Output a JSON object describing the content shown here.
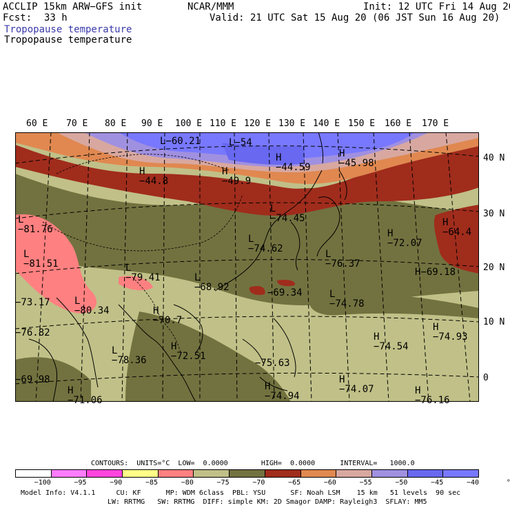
{
  "header": {
    "model_line": "ACCLIP 15km ARW−GFS init",
    "org": "NCAR/MMM",
    "init": "Init: 12 UTC Fri 14 Aug 20",
    "fcst_label": "Fcst:",
    "fcst_value": "33 h",
    "valid": "Valid: 21 UTC Sat 15 Aug 20 (06 JST Sun 16 Aug 20)",
    "field_title_colored": "Tropopause temperature",
    "field_title": "Tropopause temperature",
    "title_color": "#3a3aaa"
  },
  "map": {
    "lon_labels": [
      "60 E",
      "70 E",
      "80 E",
      "90 E",
      "100 E",
      "110 E",
      "120 E",
      "130 E",
      "140 E",
      "150 E",
      "160 E",
      "170 E"
    ],
    "lat_labels": [
      "40 N",
      "30 N",
      "20 N",
      "10 N",
      "0"
    ],
    "highs_lows": [
      {
        "mark": "L",
        "value": "−60.21"
      },
      {
        "mark": "L",
        "value": "−54"
      },
      {
        "mark": "H",
        "value": "−44.8"
      },
      {
        "mark": "H",
        "value": "−49.9"
      },
      {
        "mark": "H",
        "value": "−44.59"
      },
      {
        "mark": "H",
        "value": "−45.98"
      },
      {
        "mark": "L",
        "value": "−81.76"
      },
      {
        "mark": "L",
        "value": "−81.51"
      },
      {
        "mark": "L",
        "value": "−79.41"
      },
      {
        "mark": "L",
        "value": "−74.45"
      },
      {
        "mark": "L",
        "value": "−74.62"
      },
      {
        "mark": "H",
        "value": "−72.07"
      },
      {
        "mark": "H",
        "value": "−64.4"
      },
      {
        "mark": "L",
        "value": "−76.37"
      },
      {
        "mark": "L",
        "value": "−68.92"
      },
      {
        "mark": "L",
        "value": "−69.34"
      },
      {
        "mark": "L",
        "value": "−74.78"
      },
      {
        "mark": "H",
        "value": "−69.18"
      },
      {
        "mark": "L",
        "value": "−73.17"
      },
      {
        "mark": "L",
        "value": "−80.34"
      },
      {
        "mark": "H",
        "value": "−70.7"
      },
      {
        "mark": "H",
        "value": "−74.93"
      },
      {
        "mark": "H",
        "value": "−76.82"
      },
      {
        "mark": "L",
        "value": "−78.36"
      },
      {
        "mark": "H",
        "value": "−72.51"
      },
      {
        "mark": "H",
        "value": "−74.54"
      },
      {
        "mark": "H",
        "value": "−75.63"
      },
      {
        "mark": "H",
        "value": "−69.98"
      },
      {
        "mark": "H",
        "value": "−71.06"
      },
      {
        "mark": "H",
        "value": "−74.94"
      },
      {
        "mark": "H",
        "value": "−74.07"
      },
      {
        "mark": "H",
        "value": "−76.16"
      }
    ]
  },
  "legend": {
    "contours_line": "CONTOURS:  UNITS=°C  LOW=  0.0000        HIGH=  0.0000      INTERVAL=   1000.0",
    "ticks": [
      "−100",
      "−95",
      "−90",
      "−85",
      "−80",
      "−75",
      "−70",
      "−65",
      "−60",
      "−55",
      "−50",
      "−45",
      "−40",
      "°C"
    ],
    "colors": [
      "#ffffff",
      "#ff7cff",
      "#ff44dd",
      "#ffff88",
      "#ff8080",
      "#c0c088",
      "#727240",
      "#a02c1c",
      "#e08850",
      "#d8a8a0",
      "#a090e0",
      "#6868f0",
      "#7878ff"
    ]
  },
  "footer": {
    "line1": "Model Info: V4.1.1     CU: KF      MP: WDM 6class  PBL: YSU      SF: Noah LSM    15 km   51 levels  90 sec",
    "line2": "LW: RRTMG   SW: RRTMG  DIFF: simple KM: 2D Smagor DAMP: Rayleigh3  SFLAY: MM5"
  }
}
